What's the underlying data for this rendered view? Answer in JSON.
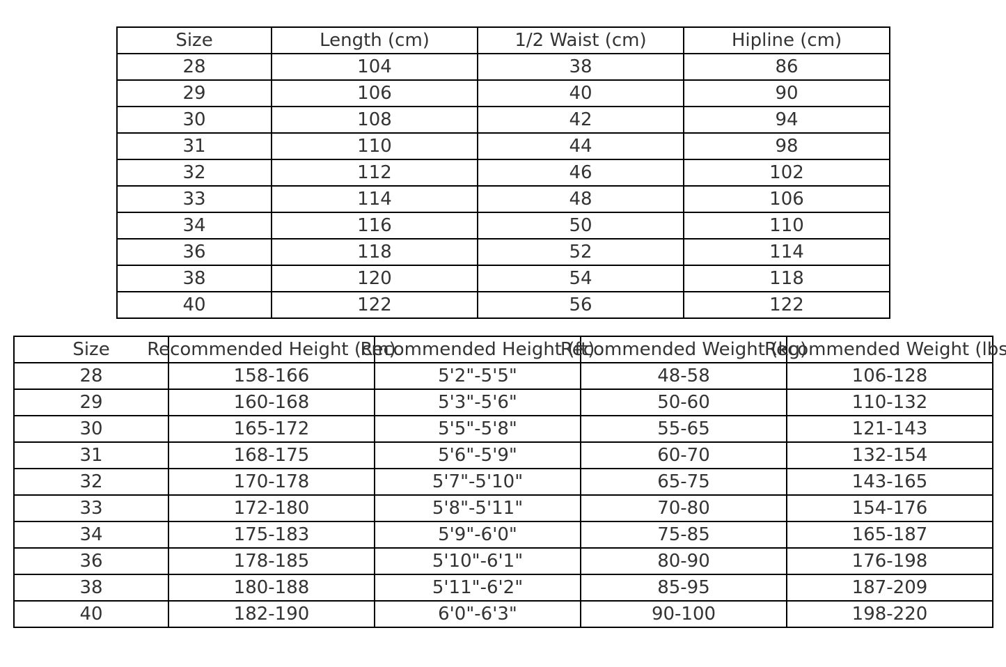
{
  "table1": {
    "headers": [
      "Size",
      "Length (cm)",
      "1/2 Waist (cm)",
      "Hipline (cm)"
    ],
    "rows": [
      [
        "28",
        "104",
        "38",
        "86"
      ],
      [
        "29",
        "106",
        "40",
        "90"
      ],
      [
        "30",
        "108",
        "42",
        "94"
      ],
      [
        "31",
        "110",
        "44",
        "98"
      ],
      [
        "32",
        "112",
        "46",
        "102"
      ],
      [
        "33",
        "114",
        "48",
        "106"
      ],
      [
        "34",
        "116",
        "50",
        "110"
      ],
      [
        "36",
        "118",
        "52",
        "114"
      ],
      [
        "38",
        "120",
        "54",
        "118"
      ],
      [
        "40",
        "122",
        "56",
        "122"
      ]
    ]
  },
  "table2": {
    "headers": [
      "Size",
      "Recommended Height (cm)",
      "Recommended Height (ft)",
      "Recommended Weight (kg)",
      "Recommended Weight (lbs)"
    ],
    "rows": [
      [
        "28",
        "158-166",
        "5'2\"-5'5\"",
        "48-58",
        "106-128"
      ],
      [
        "29",
        "160-168",
        "5'3\"-5'6\"",
        "50-60",
        "110-132"
      ],
      [
        "30",
        "165-172",
        "5'5\"-5'8\"",
        "55-65",
        "121-143"
      ],
      [
        "31",
        "168-175",
        "5'6\"-5'9\"",
        "60-70",
        "132-154"
      ],
      [
        "32",
        "170-178",
        "5'7\"-5'10\"",
        "65-75",
        "143-165"
      ],
      [
        "33",
        "172-180",
        "5'8\"-5'11\"",
        "70-80",
        "154-176"
      ],
      [
        "34",
        "175-183",
        "5'9\"-6'0\"",
        "75-85",
        "165-187"
      ],
      [
        "36",
        "178-185",
        "5'10\"-6'1\"",
        "80-90",
        "176-198"
      ],
      [
        "38",
        "180-188",
        "5'11\"-6'2\"",
        "85-95",
        "187-209"
      ],
      [
        "40",
        "182-190",
        "6'0\"-6'3\"",
        "90-100",
        "198-220"
      ]
    ]
  }
}
